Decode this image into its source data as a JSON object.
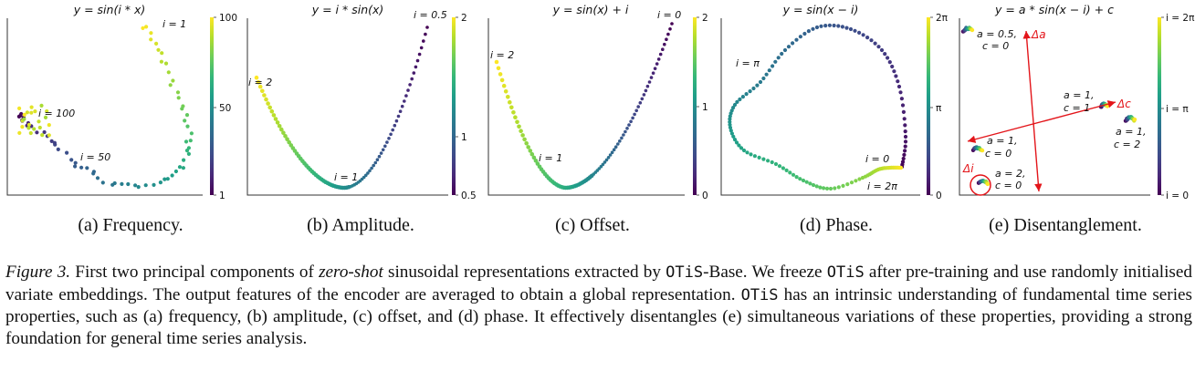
{
  "figure": {
    "label": "Figure 3.",
    "caption": {
      "part1": "First two principal components of ",
      "zero_shot": "zero-shot",
      "part2": " sinusoidal representations extracted by ",
      "otis": "OTiS",
      "part3": "-Base. We freeze ",
      "part4": " after pre-training and use randomly initialised variate embeddings. The output features of the encoder are averaged to obtain a global representation. ",
      "part5": " has an intrinsic understanding of fundamental time series properties, such as (a) frequency, (b) amplitude, (c) offset, and (d) phase. It effectively disentangles (e) simultaneous variations of these properties, providing a strong foundation for general time series analysis."
    }
  },
  "chart_data": [
    {
      "id": "a",
      "type": "scatter",
      "title": "y = sin(i * x)",
      "subcaption": "(a) Frequency.",
      "colorbar": {
        "colormap": "viridis",
        "ticks": [
          "1",
          "50",
          "100"
        ]
      },
      "annotations": [
        "i = 1",
        "i = 50",
        "i = 100"
      ]
    },
    {
      "id": "b",
      "type": "scatter",
      "title": "y = i * sin(x)",
      "subcaption": "(b) Amplitude.",
      "colorbar": {
        "colormap": "viridis",
        "ticks": [
          "0.5",
          "1",
          "2"
        ]
      },
      "annotations": [
        "i = 0.5",
        "i = 1",
        "i = 2"
      ]
    },
    {
      "id": "c",
      "type": "scatter",
      "title": "y = sin(x) + i",
      "subcaption": "(c) Offset.",
      "colorbar": {
        "colormap": "viridis",
        "ticks": [
          "0",
          "1",
          "2"
        ]
      },
      "annotations": [
        "i = 0",
        "i = 1",
        "i = 2"
      ]
    },
    {
      "id": "d",
      "type": "scatter",
      "title": "y = sin(x − i)",
      "subcaption": "(d) Phase.",
      "colorbar": {
        "colormap": "viridis",
        "ticks": [
          "0",
          "π",
          "2π"
        ]
      },
      "annotations": [
        "i = 0",
        "i = π",
        "i = 2π"
      ]
    },
    {
      "id": "e",
      "type": "scatter",
      "title": "y = a * sin(x − i) + c",
      "subcaption": "(e) Disentanglement.",
      "colorbar": {
        "colormap": "viridis",
        "ticks": [
          "i = 0",
          "i = π",
          "i = 2π"
        ]
      },
      "clusters": [
        {
          "label_line1": "a = 0.5,",
          "label_line2": "c = 0"
        },
        {
          "label_line1": "a = 1,",
          "label_line2": "c = 1"
        },
        {
          "label_line1": "a = 1,",
          "label_line2": "c = 2"
        },
        {
          "label_line1": "a = 1,",
          "label_line2": "c = 0"
        },
        {
          "label_line1": "a = 2,",
          "label_line2": "c = 0"
        }
      ],
      "arrows": [
        "Δa",
        "Δc",
        "Δi"
      ],
      "arrow_color": "#e3151a"
    }
  ]
}
